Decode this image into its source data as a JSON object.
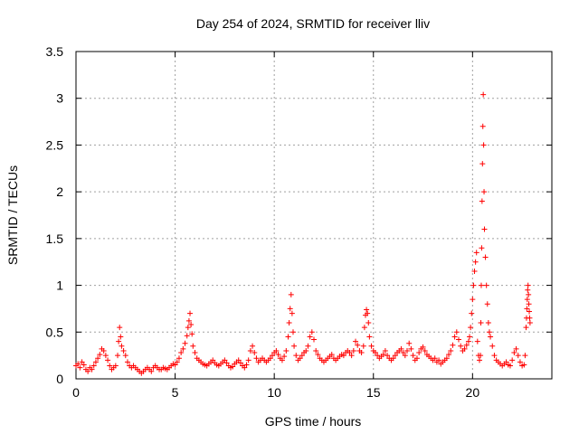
{
  "chart_data": {
    "type": "scatter",
    "title": "Day 254 of 2024, SRMTID for receiver lliv",
    "xlabel": "GPS time / hours",
    "ylabel": "SRMTID / TECUs",
    "xlim": [
      0,
      24
    ],
    "ylim": [
      0,
      3.5
    ],
    "x_ticks": [
      0,
      5,
      10,
      15,
      20
    ],
    "x_tick_labels": [
      "0",
      "5",
      "10",
      "15",
      "20"
    ],
    "y_ticks": [
      0,
      0.5,
      1,
      1.5,
      2,
      2.5,
      3,
      3.5
    ],
    "y_tick_labels": [
      "0",
      "0.5",
      "1",
      "1.5",
      "2",
      "2.5",
      "3",
      "3.5"
    ],
    "grid": true,
    "marker": "+",
    "series": [
      {
        "name": "SRMTID",
        "color": "#ff0000",
        "points": [
          [
            0.0,
            0.14
          ],
          [
            0.1,
            0.16
          ],
          [
            0.2,
            0.12
          ],
          [
            0.3,
            0.18
          ],
          [
            0.4,
            0.15
          ],
          [
            0.5,
            0.1
          ],
          [
            0.6,
            0.08
          ],
          [
            0.7,
            0.12
          ],
          [
            0.8,
            0.1
          ],
          [
            0.9,
            0.14
          ],
          [
            1.0,
            0.18
          ],
          [
            1.1,
            0.22
          ],
          [
            1.2,
            0.26
          ],
          [
            1.3,
            0.32
          ],
          [
            1.4,
            0.3
          ],
          [
            1.5,
            0.25
          ],
          [
            1.6,
            0.2
          ],
          [
            1.7,
            0.14
          ],
          [
            1.8,
            0.1
          ],
          [
            1.9,
            0.12
          ],
          [
            2.0,
            0.14
          ],
          [
            2.1,
            0.25
          ],
          [
            2.15,
            0.4
          ],
          [
            2.2,
            0.55
          ],
          [
            2.25,
            0.45
          ],
          [
            2.3,
            0.35
          ],
          [
            2.4,
            0.3
          ],
          [
            2.5,
            0.25
          ],
          [
            2.6,
            0.18
          ],
          [
            2.7,
            0.14
          ],
          [
            2.8,
            0.12
          ],
          [
            2.9,
            0.14
          ],
          [
            3.0,
            0.12
          ],
          [
            3.1,
            0.1
          ],
          [
            3.2,
            0.08
          ],
          [
            3.3,
            0.06
          ],
          [
            3.4,
            0.08
          ],
          [
            3.5,
            0.1
          ],
          [
            3.6,
            0.12
          ],
          [
            3.7,
            0.1
          ],
          [
            3.8,
            0.08
          ],
          [
            3.9,
            0.12
          ],
          [
            4.0,
            0.14
          ],
          [
            4.1,
            0.12
          ],
          [
            4.2,
            0.1
          ],
          [
            4.3,
            0.1
          ],
          [
            4.4,
            0.12
          ],
          [
            4.5,
            0.11
          ],
          [
            4.6,
            0.1
          ],
          [
            4.7,
            0.12
          ],
          [
            4.8,
            0.14
          ],
          [
            4.9,
            0.16
          ],
          [
            5.0,
            0.15
          ],
          [
            5.1,
            0.18
          ],
          [
            5.2,
            0.22
          ],
          [
            5.3,
            0.28
          ],
          [
            5.4,
            0.32
          ],
          [
            5.5,
            0.38
          ],
          [
            5.6,
            0.46
          ],
          [
            5.65,
            0.55
          ],
          [
            5.7,
            0.62
          ],
          [
            5.75,
            0.7
          ],
          [
            5.8,
            0.58
          ],
          [
            5.85,
            0.48
          ],
          [
            5.9,
            0.35
          ],
          [
            6.0,
            0.28
          ],
          [
            6.1,
            0.22
          ],
          [
            6.2,
            0.2
          ],
          [
            6.3,
            0.18
          ],
          [
            6.4,
            0.16
          ],
          [
            6.5,
            0.15
          ],
          [
            6.6,
            0.14
          ],
          [
            6.7,
            0.16
          ],
          [
            6.8,
            0.18
          ],
          [
            6.9,
            0.2
          ],
          [
            7.0,
            0.17
          ],
          [
            7.1,
            0.15
          ],
          [
            7.2,
            0.14
          ],
          [
            7.3,
            0.16
          ],
          [
            7.4,
            0.18
          ],
          [
            7.5,
            0.2
          ],
          [
            7.6,
            0.17
          ],
          [
            7.7,
            0.14
          ],
          [
            7.8,
            0.12
          ],
          [
            7.9,
            0.13
          ],
          [
            8.0,
            0.16
          ],
          [
            8.1,
            0.18
          ],
          [
            8.2,
            0.2
          ],
          [
            8.3,
            0.17
          ],
          [
            8.4,
            0.14
          ],
          [
            8.5,
            0.12
          ],
          [
            8.6,
            0.15
          ],
          [
            8.7,
            0.2
          ],
          [
            8.8,
            0.3
          ],
          [
            8.9,
            0.35
          ],
          [
            9.0,
            0.28
          ],
          [
            9.1,
            0.22
          ],
          [
            9.2,
            0.18
          ],
          [
            9.3,
            0.2
          ],
          [
            9.4,
            0.22
          ],
          [
            9.5,
            0.2
          ],
          [
            9.6,
            0.18
          ],
          [
            9.7,
            0.2
          ],
          [
            9.8,
            0.22
          ],
          [
            9.9,
            0.25
          ],
          [
            10.0,
            0.28
          ],
          [
            10.1,
            0.3
          ],
          [
            10.2,
            0.26
          ],
          [
            10.3,
            0.22
          ],
          [
            10.4,
            0.2
          ],
          [
            10.5,
            0.24
          ],
          [
            10.6,
            0.3
          ],
          [
            10.7,
            0.45
          ],
          [
            10.75,
            0.6
          ],
          [
            10.8,
            0.75
          ],
          [
            10.85,
            0.9
          ],
          [
            10.9,
            0.7
          ],
          [
            10.95,
            0.5
          ],
          [
            11.0,
            0.35
          ],
          [
            11.1,
            0.25
          ],
          [
            11.2,
            0.2
          ],
          [
            11.3,
            0.22
          ],
          [
            11.4,
            0.25
          ],
          [
            11.5,
            0.28
          ],
          [
            11.6,
            0.3
          ],
          [
            11.7,
            0.35
          ],
          [
            11.8,
            0.45
          ],
          [
            11.9,
            0.5
          ],
          [
            12.0,
            0.42
          ],
          [
            12.1,
            0.3
          ],
          [
            12.2,
            0.26
          ],
          [
            12.3,
            0.22
          ],
          [
            12.4,
            0.2
          ],
          [
            12.5,
            0.18
          ],
          [
            12.6,
            0.2
          ],
          [
            12.7,
            0.22
          ],
          [
            12.8,
            0.24
          ],
          [
            12.9,
            0.26
          ],
          [
            13.0,
            0.22
          ],
          [
            13.1,
            0.2
          ],
          [
            13.2,
            0.22
          ],
          [
            13.3,
            0.24
          ],
          [
            13.4,
            0.26
          ],
          [
            13.5,
            0.25
          ],
          [
            13.6,
            0.28
          ],
          [
            13.7,
            0.3
          ],
          [
            13.8,
            0.28
          ],
          [
            13.9,
            0.25
          ],
          [
            14.0,
            0.3
          ],
          [
            14.1,
            0.4
          ],
          [
            14.2,
            0.36
          ],
          [
            14.3,
            0.3
          ],
          [
            14.4,
            0.28
          ],
          [
            14.5,
            0.35
          ],
          [
            14.55,
            0.55
          ],
          [
            14.6,
            0.68
          ],
          [
            14.65,
            0.74
          ],
          [
            14.7,
            0.7
          ],
          [
            14.75,
            0.6
          ],
          [
            14.8,
            0.45
          ],
          [
            14.9,
            0.35
          ],
          [
            15.0,
            0.3
          ],
          [
            15.1,
            0.28
          ],
          [
            15.2,
            0.25
          ],
          [
            15.3,
            0.22
          ],
          [
            15.4,
            0.24
          ],
          [
            15.5,
            0.26
          ],
          [
            15.6,
            0.3
          ],
          [
            15.7,
            0.25
          ],
          [
            15.8,
            0.22
          ],
          [
            15.9,
            0.2
          ],
          [
            16.0,
            0.22
          ],
          [
            16.1,
            0.25
          ],
          [
            16.2,
            0.28
          ],
          [
            16.3,
            0.3
          ],
          [
            16.4,
            0.32
          ],
          [
            16.5,
            0.28
          ],
          [
            16.6,
            0.25
          ],
          [
            16.7,
            0.3
          ],
          [
            16.8,
            0.38
          ],
          [
            16.9,
            0.32
          ],
          [
            17.0,
            0.25
          ],
          [
            17.1,
            0.2
          ],
          [
            17.2,
            0.22
          ],
          [
            17.3,
            0.28
          ],
          [
            17.4,
            0.32
          ],
          [
            17.5,
            0.34
          ],
          [
            17.6,
            0.3
          ],
          [
            17.7,
            0.26
          ],
          [
            17.8,
            0.24
          ],
          [
            17.9,
            0.22
          ],
          [
            18.0,
            0.2
          ],
          [
            18.1,
            0.22
          ],
          [
            18.2,
            0.18
          ],
          [
            18.3,
            0.2
          ],
          [
            18.4,
            0.16
          ],
          [
            18.5,
            0.18
          ],
          [
            18.6,
            0.2
          ],
          [
            18.7,
            0.22
          ],
          [
            18.8,
            0.26
          ],
          [
            18.9,
            0.3
          ],
          [
            19.0,
            0.36
          ],
          [
            19.1,
            0.45
          ],
          [
            19.2,
            0.5
          ],
          [
            19.3,
            0.42
          ],
          [
            19.4,
            0.35
          ],
          [
            19.5,
            0.3
          ],
          [
            19.6,
            0.32
          ],
          [
            19.7,
            0.36
          ],
          [
            19.8,
            0.4
          ],
          [
            19.85,
            0.45
          ],
          [
            19.9,
            0.55
          ],
          [
            19.95,
            0.7
          ],
          [
            20.0,
            0.85
          ],
          [
            20.05,
            1.0
          ],
          [
            20.1,
            1.15
          ],
          [
            20.15,
            1.25
          ],
          [
            20.2,
            1.35
          ],
          [
            20.25,
            0.4
          ],
          [
            20.3,
            0.25
          ],
          [
            20.35,
            0.2
          ],
          [
            20.4,
            0.25
          ],
          [
            20.42,
            0.6
          ],
          [
            20.44,
            1.0
          ],
          [
            20.46,
            1.4
          ],
          [
            20.48,
            1.9
          ],
          [
            20.5,
            2.3
          ],
          [
            20.52,
            2.7
          ],
          [
            20.54,
            3.04
          ],
          [
            20.56,
            2.5
          ],
          [
            20.58,
            2.0
          ],
          [
            20.6,
            1.6
          ],
          [
            20.65,
            1.3
          ],
          [
            20.7,
            1.0
          ],
          [
            20.75,
            0.8
          ],
          [
            20.8,
            0.6
          ],
          [
            20.85,
            0.5
          ],
          [
            20.9,
            0.45
          ],
          [
            21.0,
            0.35
          ],
          [
            21.1,
            0.25
          ],
          [
            21.2,
            0.2
          ],
          [
            21.3,
            0.18
          ],
          [
            21.4,
            0.16
          ],
          [
            21.5,
            0.14
          ],
          [
            21.6,
            0.16
          ],
          [
            21.7,
            0.18
          ],
          [
            21.8,
            0.15
          ],
          [
            21.9,
            0.14
          ],
          [
            22.0,
            0.2
          ],
          [
            22.1,
            0.28
          ],
          [
            22.2,
            0.32
          ],
          [
            22.3,
            0.25
          ],
          [
            22.4,
            0.18
          ],
          [
            22.5,
            0.14
          ],
          [
            22.6,
            0.15
          ],
          [
            22.65,
            0.25
          ],
          [
            22.7,
            0.55
          ],
          [
            22.72,
            0.65
          ],
          [
            22.74,
            0.75
          ],
          [
            22.76,
            0.85
          ],
          [
            22.78,
            0.95
          ],
          [
            22.8,
            1.0
          ],
          [
            22.82,
            0.9
          ],
          [
            22.84,
            0.8
          ],
          [
            22.86,
            0.72
          ],
          [
            22.88,
            0.65
          ],
          [
            22.9,
            0.6
          ]
        ]
      }
    ]
  }
}
